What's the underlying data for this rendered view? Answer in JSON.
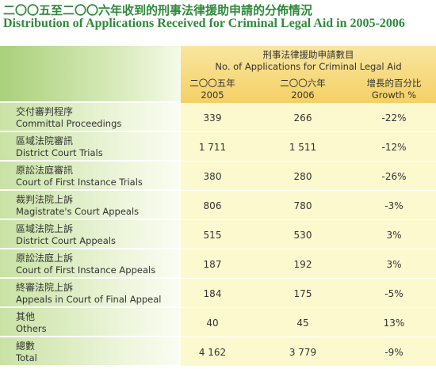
{
  "header": {
    "title_zh": "二〇〇五至二〇〇六年收到的刑事法律援助申請的分佈情況",
    "title_en": "Distribution of Applications Received for Criminal Legal Aid in 2005-2006"
  },
  "table": {
    "group_zh": "刑事法律援助申請數目",
    "group_en": "No. of Applications for Criminal Legal Aid",
    "columns": [
      {
        "zh": "二〇〇五年",
        "en": "2005"
      },
      {
        "zh": "二〇〇六年",
        "en": "2006"
      },
      {
        "zh": "增長的百分比",
        "en": "Growth %"
      }
    ],
    "rows": [
      {
        "zh": "交付審判程序",
        "en": "Committal Proceedings",
        "cells": [
          "339",
          "266",
          "-22%"
        ]
      },
      {
        "zh": "區域法院審訊",
        "en": "District Court Trials",
        "cells": [
          "1 711",
          "1 511",
          "-12%"
        ]
      },
      {
        "zh": "原訟法庭審訊",
        "en": "Court of First Instance Trials",
        "cells": [
          "380",
          "280",
          "-26%"
        ]
      },
      {
        "zh": "裁判法院上訴",
        "en": "Magistrate's Court Appeals",
        "cells": [
          "806",
          "780",
          "-3%"
        ]
      },
      {
        "zh": "區域法院上訴",
        "en": "District Court Appeals",
        "cells": [
          "515",
          "530",
          "3%"
        ]
      },
      {
        "zh": "原訟法庭上訴",
        "en": "Court of First Instance Appeals",
        "cells": [
          "187",
          "192",
          "3%"
        ]
      },
      {
        "zh": "終審法院上訴",
        "en": "Appeals in Court of Final Appeal",
        "cells": [
          "184",
          "175",
          "-5%"
        ]
      },
      {
        "zh": "其他",
        "en": "Others",
        "cells": [
          "40",
          "45",
          "13%"
        ]
      },
      {
        "zh": "總數",
        "en": "Total",
        "cells": [
          "4 162",
          "3 779",
          "-9%"
        ]
      }
    ]
  }
}
